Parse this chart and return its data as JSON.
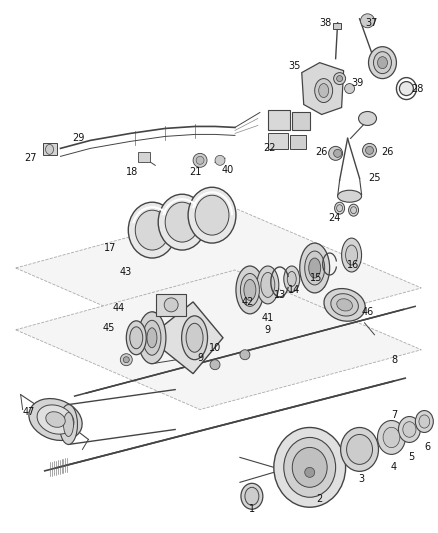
{
  "bg_color": "#ffffff",
  "line_color": "#444444",
  "label_color": "#111111",
  "fig_width": 4.38,
  "fig_height": 5.33,
  "dpi": 100,
  "gray_light": "#e8e8e8",
  "gray_mid": "#cccccc",
  "gray_dark": "#999999",
  "gray_fill": "#d4d4d4",
  "sheet_color": "#c8c8c8"
}
